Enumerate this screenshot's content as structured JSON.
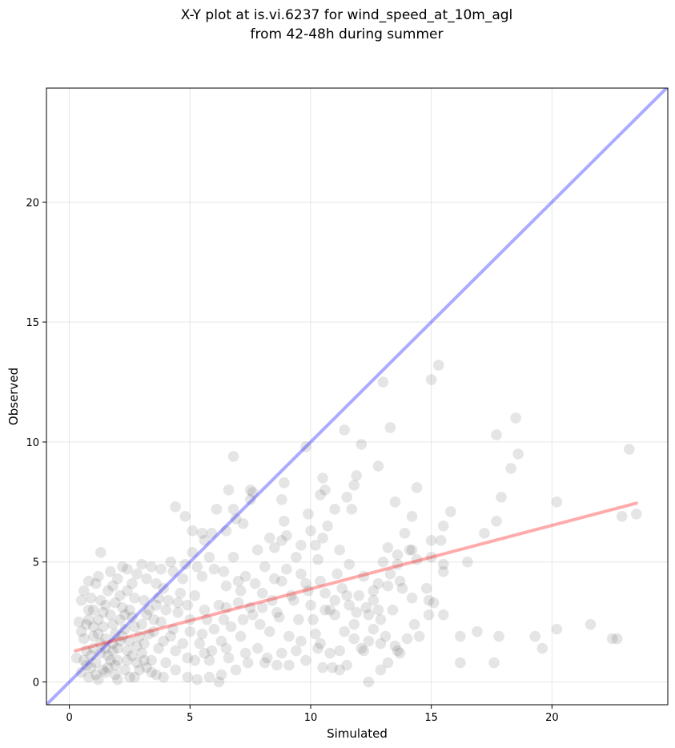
{
  "chart_data": {
    "type": "scatter",
    "title_lines": [
      "X-Y plot at is.vi.6237 for wind_speed_at_10m_agl",
      "from 42-48h during summer"
    ],
    "xlabel": "Simulated",
    "ylabel": "Observed",
    "xlim": [
      -0.95,
      24.8
    ],
    "ylim": [
      -0.95,
      24.75
    ],
    "xticks": [
      0,
      5,
      10,
      15,
      20
    ],
    "yticks": [
      0,
      5,
      10,
      15,
      20
    ],
    "xtick_labels": [
      "0",
      "5",
      "10",
      "15",
      "20"
    ],
    "ytick_labels": [
      "0",
      "5",
      "10",
      "15",
      "20"
    ],
    "grid": true,
    "point_color": "#000000",
    "points": [
      [
        13.0,
        12.5
      ],
      [
        15.0,
        12.6
      ],
      [
        15.3,
        13.2
      ],
      [
        18.5,
        11.0
      ],
      [
        17.7,
        10.3
      ],
      [
        18.6,
        9.5
      ],
      [
        23.2,
        9.7
      ],
      [
        18.3,
        8.9
      ],
      [
        22.9,
        6.9
      ],
      [
        23.5,
        7.0
      ],
      [
        20.2,
        7.5
      ],
      [
        17.9,
        7.7
      ],
      [
        17.2,
        6.2
      ],
      [
        17.7,
        6.7
      ],
      [
        16.5,
        5.0
      ],
      [
        15.8,
        7.1
      ],
      [
        15.5,
        6.5
      ],
      [
        15.4,
        5.9
      ],
      [
        15.0,
        5.9
      ],
      [
        15.5,
        4.6
      ],
      [
        15.5,
        4.9
      ],
      [
        15.0,
        5.2
      ],
      [
        14.9,
        3.4
      ],
      [
        15.1,
        3.3
      ],
      [
        14.9,
        2.8
      ],
      [
        15.5,
        2.8
      ],
      [
        14.4,
        8.1
      ],
      [
        14.2,
        6.9
      ],
      [
        13.9,
        6.2
      ],
      [
        14.2,
        5.5
      ],
      [
        14.4,
        5.1
      ],
      [
        14.1,
        5.5
      ],
      [
        13.6,
        5.3
      ],
      [
        13.2,
        5.6
      ],
      [
        13.6,
        4.9
      ],
      [
        13.7,
        4.2
      ],
      [
        13.8,
        3.9
      ],
      [
        14.2,
        3.5
      ],
      [
        14.3,
        2.4
      ],
      [
        14.5,
        1.9
      ],
      [
        14.0,
        1.8
      ],
      [
        13.6,
        1.3
      ],
      [
        13.7,
        1.2
      ],
      [
        13.5,
        1.5
      ],
      [
        13.1,
        1.9
      ],
      [
        12.9,
        2.6
      ],
      [
        12.6,
        2.2
      ],
      [
        12.4,
        1.7
      ],
      [
        12.9,
        0.5
      ],
      [
        13.2,
        0.8
      ],
      [
        12.4,
        0.0
      ],
      [
        11.8,
        1.8
      ],
      [
        11.5,
        0.7
      ],
      [
        12.2,
        1.3
      ],
      [
        11.9,
        2.9
      ],
      [
        12.6,
        3.4
      ],
      [
        12.8,
        3.0
      ],
      [
        13.2,
        4.0
      ],
      [
        13.3,
        4.5
      ],
      [
        13.0,
        5.0
      ],
      [
        13.5,
        7.5
      ],
      [
        13.3,
        10.6
      ],
      [
        12.8,
        9.0
      ],
      [
        12.1,
        9.9
      ],
      [
        11.4,
        10.5
      ],
      [
        11.9,
        8.6
      ],
      [
        11.8,
        8.2
      ],
      [
        11.5,
        7.7
      ],
      [
        11.7,
        7.2
      ],
      [
        11.0,
        7.2
      ],
      [
        10.5,
        8.5
      ],
      [
        10.6,
        8.0
      ],
      [
        10.4,
        7.8
      ],
      [
        9.9,
        7.0
      ],
      [
        10.7,
        6.5
      ],
      [
        10.5,
        6.0
      ],
      [
        10.2,
        5.7
      ],
      [
        10.0,
        6.3
      ],
      [
        9.6,
        5.7
      ],
      [
        9.8,
        9.8
      ],
      [
        8.9,
        8.3
      ],
      [
        8.8,
        7.6
      ],
      [
        9.0,
        6.1
      ],
      [
        8.9,
        6.7
      ],
      [
        8.8,
        5.9
      ],
      [
        8.5,
        5.6
      ],
      [
        8.3,
        6.0
      ],
      [
        7.5,
        8.0
      ],
      [
        7.5,
        7.6
      ],
      [
        6.8,
        9.4
      ],
      [
        6.6,
        8.0
      ],
      [
        7.6,
        7.9
      ],
      [
        6.1,
        7.2
      ],
      [
        6.8,
        7.2
      ],
      [
        7.2,
        6.6
      ],
      [
        6.9,
        6.8
      ],
      [
        6.5,
        6.3
      ],
      [
        5.5,
        6.2
      ],
      [
        5.1,
        6.3
      ],
      [
        4.8,
        6.9
      ],
      [
        4.4,
        7.3
      ],
      [
        5.9,
        6.2
      ],
      [
        5.6,
        5.9
      ],
      [
        22.5,
        1.8
      ],
      [
        22.7,
        1.8
      ],
      [
        21.6,
        2.4
      ],
      [
        20.2,
        2.2
      ],
      [
        19.6,
        1.4
      ],
      [
        19.3,
        1.9
      ],
      [
        17.8,
        1.9
      ],
      [
        16.9,
        2.1
      ],
      [
        17.6,
        0.8
      ],
      [
        16.2,
        0.8
      ],
      [
        16.2,
        1.9
      ],
      [
        14.8,
        3.9
      ],
      [
        11.6,
        3.2
      ],
      [
        11.0,
        3.4
      ],
      [
        10.6,
        3.0
      ],
      [
        10.8,
        1.2
      ],
      [
        10.5,
        0.6
      ],
      [
        10.9,
        0.6
      ],
      [
        11.2,
        0.5
      ],
      [
        10.3,
        1.4
      ],
      [
        9.8,
        0.9
      ],
      [
        9.4,
        1.3
      ],
      [
        9.1,
        0.7
      ],
      [
        8.6,
        0.7
      ],
      [
        8.2,
        1.0
      ],
      [
        7.8,
        1.4
      ],
      [
        7.4,
        0.8
      ],
      [
        6.9,
        0.5
      ],
      [
        6.3,
        0.3
      ],
      [
        6.2,
        0.0
      ],
      [
        5.8,
        0.2
      ],
      [
        5.3,
        0.1
      ],
      [
        4.9,
        0.2
      ],
      [
        6.6,
        1.0
      ],
      [
        7.1,
        1.9
      ],
      [
        7.9,
        2.4
      ],
      [
        8.6,
        2.9
      ],
      [
        9.3,
        3.4
      ],
      [
        9.9,
        3.8
      ],
      [
        10.4,
        4.2
      ],
      [
        11.1,
        4.5
      ],
      [
        11.6,
        4.9
      ],
      [
        12.2,
        4.4
      ],
      [
        12.6,
        3.8
      ],
      [
        11.4,
        2.1
      ],
      [
        10.1,
        2.6
      ],
      [
        9.1,
        1.9
      ],
      [
        8.3,
        2.1
      ],
      [
        7.6,
        2.8
      ],
      [
        7.0,
        3.3
      ],
      [
        8.0,
        3.7
      ],
      [
        8.8,
        4.2
      ],
      [
        9.6,
        4.5
      ],
      [
        10.3,
        5.1
      ],
      [
        11.2,
        5.5
      ],
      [
        9.4,
        5.2
      ],
      [
        8.1,
        4.8
      ],
      [
        7.3,
        4.4
      ],
      [
        6.5,
        4.0
      ],
      [
        6.0,
        4.7
      ],
      [
        6.8,
        5.2
      ],
      [
        7.8,
        5.5
      ],
      [
        6.2,
        3.2
      ],
      [
        5.7,
        2.6
      ],
      [
        5.2,
        3.6
      ],
      [
        4.7,
        4.3
      ],
      [
        4.2,
        5.0
      ],
      [
        5.1,
        5.4
      ],
      [
        5.5,
        4.4
      ],
      [
        4.5,
        2.9
      ],
      [
        4.1,
        3.4
      ],
      [
        3.6,
        4.1
      ],
      [
        3.4,
        4.8
      ],
      [
        3.1,
        3.4
      ],
      [
        2.8,
        4.5
      ],
      [
        2.4,
        4.7
      ],
      [
        2.1,
        3.6
      ],
      [
        1.8,
        4.0
      ],
      [
        1.3,
        5.4
      ],
      [
        0.8,
        4.2
      ],
      [
        0.5,
        3.4
      ],
      [
        0.4,
        2.5
      ],
      [
        0.6,
        1.8
      ],
      [
        0.3,
        1.0
      ],
      [
        0.5,
        0.4
      ],
      [
        0.8,
        0.2
      ],
      [
        1.2,
        0.1
      ],
      [
        1.5,
        0.4
      ],
      [
        1.9,
        0.3
      ],
      [
        2.3,
        0.5
      ],
      [
        2.7,
        0.2
      ],
      [
        3.2,
        0.6
      ],
      [
        3.6,
        0.3
      ],
      [
        4.0,
        0.8
      ],
      [
        4.4,
        1.3
      ],
      [
        3.9,
        1.7
      ],
      [
        3.5,
        2.1
      ],
      [
        3.0,
        2.4
      ],
      [
        2.6,
        2.7
      ],
      [
        2.2,
        3.1
      ],
      [
        1.7,
        2.8
      ],
      [
        1.4,
        2.3
      ],
      [
        1.0,
        1.9
      ],
      [
        0.7,
        1.3
      ],
      [
        1.1,
        0.8
      ],
      [
        1.6,
        1.1
      ],
      [
        2.0,
        1.4
      ],
      [
        2.5,
        1.7
      ],
      [
        3.0,
        1.2
      ],
      [
        3.4,
        0.9
      ],
      [
        2.9,
        1.9
      ],
      [
        2.3,
        2.2
      ],
      [
        1.8,
        1.6
      ],
      [
        1.3,
        1.2
      ],
      [
        0.9,
        0.6
      ],
      [
        1.4,
        0.5
      ],
      [
        1.9,
        0.7
      ],
      [
        2.4,
        0.9
      ],
      [
        2.1,
        2.6
      ],
      [
        1.5,
        3.2
      ],
      [
        1.0,
        3.0
      ],
      [
        0.7,
        2.4
      ],
      [
        1.2,
        2.6
      ],
      [
        2.7,
        3.5
      ],
      [
        3.3,
        3.0
      ],
      [
        3.8,
        2.5
      ],
      [
        4.3,
        2.2
      ],
      [
        4.7,
        1.6
      ],
      [
        5.0,
        2.1
      ],
      [
        5.4,
        1.6
      ],
      [
        5.9,
        1.3
      ],
      [
        6.3,
        1.7
      ],
      [
        6.7,
        2.3
      ],
      [
        7.2,
        2.6
      ],
      [
        5.6,
        3.0
      ],
      [
        4.9,
        3.2
      ],
      [
        4.6,
        3.7
      ],
      [
        3.9,
        3.9
      ],
      [
        3.2,
        4.3
      ],
      [
        2.6,
        4.1
      ],
      [
        2.0,
        4.3
      ],
      [
        1.6,
        3.8
      ],
      [
        1.1,
        4.1
      ],
      [
        0.6,
        3.8
      ],
      [
        0.9,
        3.5
      ],
      [
        1.5,
        1.8
      ],
      [
        1.0,
        1.4
      ],
      [
        0.6,
        0.9
      ],
      [
        2.8,
        0.8
      ],
      [
        3.7,
        1.4
      ],
      [
        4.2,
        1.9
      ],
      [
        5.2,
        0.9
      ],
      [
        5.8,
        0.9
      ],
      [
        6.4,
        2.6
      ],
      [
        7.5,
        3.1
      ],
      [
        8.4,
        3.4
      ],
      [
        9.0,
        4.7
      ],
      [
        9.8,
        4.1
      ],
      [
        10.6,
        3.7
      ],
      [
        11.3,
        3.9
      ],
      [
        12.0,
        3.6
      ],
      [
        12.4,
        2.8
      ],
      [
        11.8,
        2.4
      ],
      [
        11.0,
        2.8
      ],
      [
        10.2,
        2.0
      ],
      [
        9.5,
        2.6
      ],
      [
        8.7,
        2.7
      ],
      [
        8.0,
        3.1
      ],
      [
        7.1,
        3.8
      ],
      [
        6.4,
        4.6
      ],
      [
        5.8,
        5.2
      ],
      [
        5.3,
        4.8
      ],
      [
        4.8,
        4.9
      ],
      [
        4.3,
        4.6
      ],
      [
        3.8,
        4.7
      ],
      [
        3.0,
        4.9
      ],
      [
        2.2,
        4.8
      ],
      [
        1.7,
        4.6
      ],
      [
        1.2,
        4.4
      ],
      [
        0.8,
        3.0
      ],
      [
        1.9,
        2.0
      ],
      [
        2.4,
        1.3
      ],
      [
        3.1,
        1.6
      ],
      [
        3.5,
        2.6
      ],
      [
        4.0,
        3.0
      ],
      [
        4.5,
        3.3
      ],
      [
        5.0,
        2.6
      ],
      [
        5.5,
        2.0
      ],
      [
        6.0,
        2.2
      ],
      [
        6.5,
        3.1
      ],
      [
        7.0,
        4.2
      ],
      [
        7.7,
        4.1
      ],
      [
        8.5,
        4.3
      ],
      [
        9.2,
        3.6
      ],
      [
        10.0,
        3.2
      ],
      [
        10.8,
        3.0
      ],
      [
        11.5,
        3.6
      ],
      [
        12.3,
        3.1
      ],
      [
        12.8,
        4.1
      ],
      [
        13.4,
        3.0
      ],
      [
        12.9,
        1.6
      ],
      [
        12.1,
        1.4
      ],
      [
        11.2,
        1.3
      ],
      [
        10.4,
        1.6
      ],
      [
        9.6,
        1.7
      ],
      [
        8.8,
        1.2
      ],
      [
        8.1,
        0.8
      ],
      [
        7.3,
        1.2
      ],
      [
        6.5,
        1.4
      ],
      [
        5.6,
        1.2
      ],
      [
        4.9,
        1.0
      ],
      [
        4.4,
        0.5
      ],
      [
        3.9,
        0.2
      ],
      [
        3.4,
        0.4
      ],
      [
        2.9,
        0.5
      ],
      [
        2.5,
        0.2
      ],
      [
        2.0,
        0.1
      ],
      [
        1.6,
        0.6
      ],
      [
        1.1,
        0.3
      ],
      [
        0.7,
        0.7
      ],
      [
        1.3,
        1.6
      ],
      [
        1.8,
        1.3
      ],
      [
        2.2,
        1.9
      ],
      [
        2.7,
        2.3
      ],
      [
        3.3,
        2.0
      ],
      [
        3.7,
        3.5
      ],
      [
        2.5,
        3.0
      ],
      [
        1.9,
        3.3
      ],
      [
        1.4,
        2.9
      ],
      [
        1.0,
        2.3
      ],
      [
        0.5,
        2.1
      ],
      [
        2.0,
        0.9
      ],
      [
        2.6,
        1.1
      ],
      [
        3.1,
        0.9
      ],
      [
        1.7,
        0.9
      ],
      [
        1.2,
        2.0
      ],
      [
        2.3,
        2.8
      ],
      [
        0.9,
        1.1
      ],
      [
        1.5,
        1.4
      ],
      [
        2.1,
        1.7
      ],
      [
        2.8,
        1.5
      ],
      [
        3.2,
        2.8
      ],
      [
        3.6,
        3.2
      ],
      [
        1.3,
        3.4
      ],
      [
        0.8,
        2.6
      ],
      [
        1.8,
        2.4
      ],
      [
        2.4,
        3.8
      ]
    ],
    "fit_line": {
      "color": "#ff0000",
      "x": [
        0.25,
        23.5
      ],
      "y": [
        1.3,
        7.45
      ]
    },
    "identity_line": {
      "color": "#0000ff",
      "x": [
        -0.95,
        24.8
      ],
      "y": [
        -0.95,
        24.8
      ]
    }
  }
}
